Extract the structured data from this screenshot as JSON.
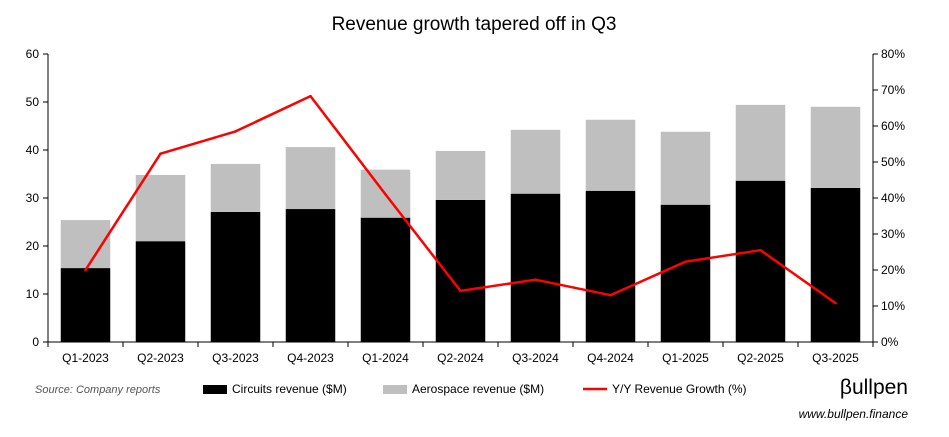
{
  "chart_data": {
    "type": "bar",
    "stacked": true,
    "title": "Revenue growth tapered off in Q3",
    "categories": [
      "Q1-2023",
      "Q2-2023",
      "Q3-2023",
      "Q4-2023",
      "Q1-2024",
      "Q2-2024",
      "Q3-2024",
      "Q4-2024",
      "Q1-2025",
      "Q2-2025",
      "Q3-2025"
    ],
    "series": [
      {
        "name": "Circuits revenue ($M)",
        "type": "bar",
        "color": "#000000",
        "values": [
          15.4,
          21.0,
          27.1,
          27.7,
          25.9,
          29.6,
          30.9,
          31.5,
          28.6,
          33.6,
          32.1
        ]
      },
      {
        "name": "Aerospace revenue ($M)",
        "type": "bar",
        "color": "#bfbfbf",
        "values": [
          10.0,
          13.8,
          10.0,
          12.9,
          10.0,
          10.2,
          13.3,
          14.8,
          15.2,
          15.8,
          16.9
        ]
      },
      {
        "name": "Y/Y Revenue Growth (%)",
        "type": "line",
        "axis": "right",
        "color": "#ff0000",
        "values": [
          20.0,
          52.3,
          58.5,
          68.3,
          41.0,
          14.2,
          17.3,
          13.0,
          22.3,
          25.5,
          10.8
        ]
      }
    ],
    "ylim": [
      0,
      60
    ],
    "yticks": [
      "0",
      "10",
      "20",
      "30",
      "40",
      "50",
      "60"
    ],
    "y2lim": [
      0,
      80
    ],
    "y2ticks": [
      "0%",
      "10%",
      "20%",
      "30%",
      "40%",
      "50%",
      "60%",
      "70%",
      "80%"
    ],
    "grid": false,
    "legend_position": "bottom"
  },
  "footer": {
    "source": "Source: Company reports",
    "brand": "βullpen",
    "website": "www.bullpen.finance"
  }
}
